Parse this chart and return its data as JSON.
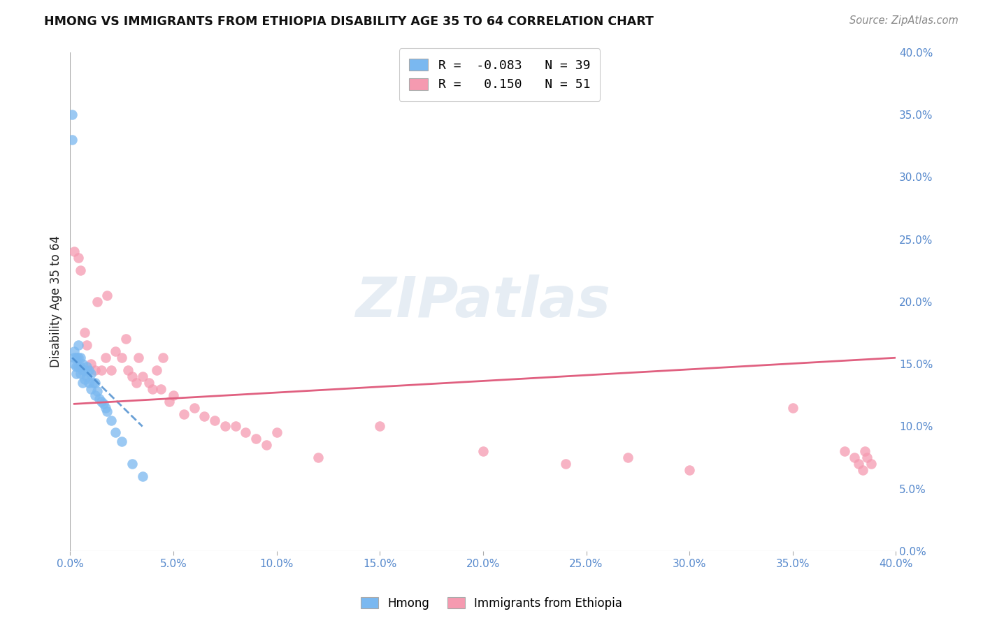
{
  "title": "HMONG VS IMMIGRANTS FROM ETHIOPIA DISABILITY AGE 35 TO 64 CORRELATION CHART",
  "source": "Source: ZipAtlas.com",
  "ylabel": "Disability Age 35 to 64",
  "xlim": [
    0.0,
    0.4
  ],
  "ylim": [
    0.0,
    0.4
  ],
  "xticks": [
    0.0,
    0.05,
    0.1,
    0.15,
    0.2,
    0.25,
    0.3,
    0.35,
    0.4
  ],
  "yticks": [
    0.0,
    0.05,
    0.1,
    0.15,
    0.2,
    0.25,
    0.3,
    0.35,
    0.4
  ],
  "grid_color": "#cccccc",
  "background_color": "#ffffff",
  "hmong_color": "#7ab8f0",
  "ethiopia_color": "#f59ab0",
  "hmong_R": -0.083,
  "hmong_N": 39,
  "ethiopia_R": 0.15,
  "ethiopia_N": 51,
  "hmong_scatter_x": [
    0.001,
    0.001,
    0.002,
    0.002,
    0.002,
    0.003,
    0.003,
    0.003,
    0.004,
    0.004,
    0.004,
    0.005,
    0.005,
    0.005,
    0.006,
    0.006,
    0.006,
    0.007,
    0.007,
    0.008,
    0.008,
    0.009,
    0.009,
    0.01,
    0.01,
    0.011,
    0.012,
    0.012,
    0.013,
    0.014,
    0.015,
    0.016,
    0.017,
    0.018,
    0.02,
    0.022,
    0.025,
    0.03,
    0.035
  ],
  "hmong_scatter_y": [
    0.35,
    0.33,
    0.16,
    0.155,
    0.15,
    0.155,
    0.148,
    0.142,
    0.165,
    0.155,
    0.148,
    0.155,
    0.148,
    0.142,
    0.15,
    0.145,
    0.135,
    0.145,
    0.138,
    0.148,
    0.14,
    0.145,
    0.135,
    0.142,
    0.13,
    0.135,
    0.135,
    0.125,
    0.128,
    0.122,
    0.12,
    0.118,
    0.115,
    0.112,
    0.105,
    0.095,
    0.088,
    0.07,
    0.06
  ],
  "ethiopia_scatter_x": [
    0.002,
    0.004,
    0.005,
    0.007,
    0.008,
    0.01,
    0.012,
    0.013,
    0.015,
    0.017,
    0.018,
    0.02,
    0.022,
    0.025,
    0.027,
    0.028,
    0.03,
    0.032,
    0.033,
    0.035,
    0.038,
    0.04,
    0.042,
    0.044,
    0.045,
    0.048,
    0.05,
    0.055,
    0.06,
    0.065,
    0.07,
    0.075,
    0.08,
    0.085,
    0.09,
    0.095,
    0.1,
    0.12,
    0.15,
    0.2,
    0.24,
    0.27,
    0.3,
    0.35,
    0.375,
    0.38,
    0.382,
    0.384,
    0.385,
    0.386,
    0.388
  ],
  "ethiopia_scatter_y": [
    0.24,
    0.235,
    0.225,
    0.175,
    0.165,
    0.15,
    0.145,
    0.2,
    0.145,
    0.155,
    0.205,
    0.145,
    0.16,
    0.155,
    0.17,
    0.145,
    0.14,
    0.135,
    0.155,
    0.14,
    0.135,
    0.13,
    0.145,
    0.13,
    0.155,
    0.12,
    0.125,
    0.11,
    0.115,
    0.108,
    0.105,
    0.1,
    0.1,
    0.095,
    0.09,
    0.085,
    0.095,
    0.075,
    0.1,
    0.08,
    0.07,
    0.075,
    0.065,
    0.115,
    0.08,
    0.075,
    0.07,
    0.065,
    0.08,
    0.075,
    0.07
  ],
  "hmong_line_x": [
    0.001,
    0.035
  ],
  "hmong_line_y": [
    0.155,
    0.1
  ],
  "ethiopia_line_x": [
    0.002,
    0.4
  ],
  "ethiopia_line_y": [
    0.118,
    0.155
  ]
}
